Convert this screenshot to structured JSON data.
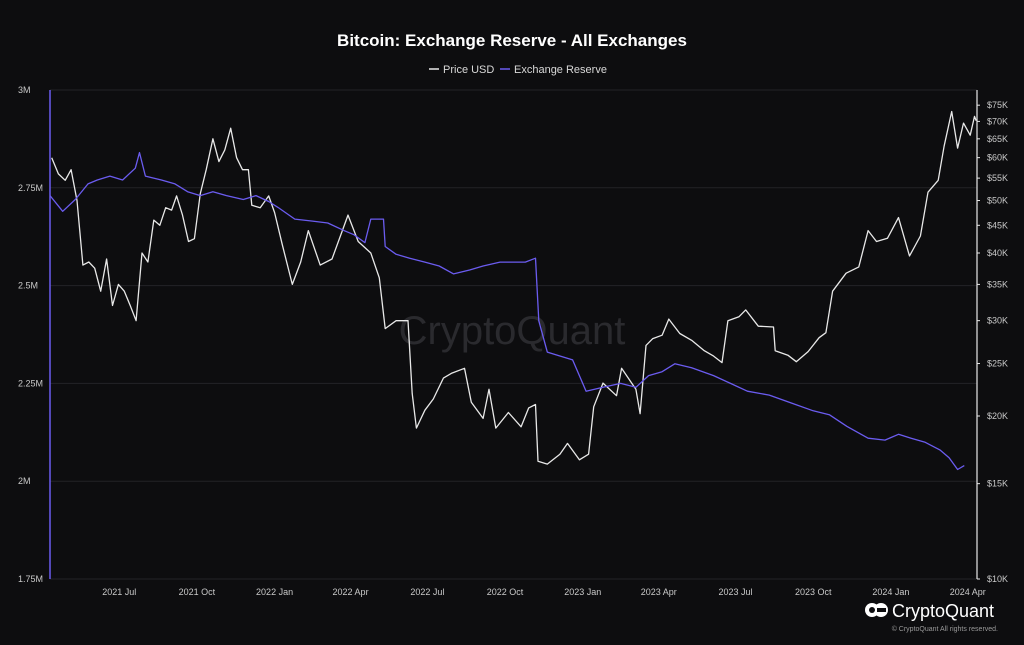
{
  "colors": {
    "background": "#0d0d0f",
    "price": "#e8e8e8",
    "reserve": "#6b5cf0",
    "grid": "#232327"
  },
  "watermark": "CryptoQuant",
  "brand": {
    "name": "CryptoQuant",
    "copyright": "© CryptoQuant All rights reserved.",
    "logo_icon": "cryptoquant-logo-icon"
  },
  "chart_data": {
    "type": "line",
    "title": "Bitcoin: Exchange Reserve - All Exchanges",
    "legend": [
      "Price USD",
      "Exchange Reserve"
    ],
    "legend_placement": "top-center",
    "grid": true,
    "x_range": [
      "2021-04-10",
      "2024-04-12"
    ],
    "x_ticks": [
      {
        "label": "2021 Jul",
        "date": "2021-07-01"
      },
      {
        "label": "2021 Oct",
        "date": "2021-10-01"
      },
      {
        "label": "2022 Jan",
        "date": "2022-01-01"
      },
      {
        "label": "2022 Apr",
        "date": "2022-04-01"
      },
      {
        "label": "2022 Jul",
        "date": "2022-07-01"
      },
      {
        "label": "2022 Oct",
        "date": "2022-10-01"
      },
      {
        "label": "2023 Jan",
        "date": "2023-01-01"
      },
      {
        "label": "2023 Apr",
        "date": "2023-04-01"
      },
      {
        "label": "2023 Jul",
        "date": "2023-07-01"
      },
      {
        "label": "2023 Oct",
        "date": "2023-10-01"
      },
      {
        "label": "2024 Jan",
        "date": "2024-01-01"
      },
      {
        "label": "2024 Apr",
        "date": "2024-04-01"
      }
    ],
    "y_left": {
      "range": [
        1750000,
        3000000
      ],
      "ticks": [
        {
          "label": "1.75M",
          "value": 1750000
        },
        {
          "label": "2M",
          "value": 2000000
        },
        {
          "label": "2.25M",
          "value": 2250000
        },
        {
          "label": "2.5M",
          "value": 2500000
        },
        {
          "label": "2.75M",
          "value": 2750000
        },
        {
          "label": "3M",
          "value": 3000000
        }
      ]
    },
    "y_right": {
      "scale": "log",
      "range": [
        10000,
        80000
      ],
      "ticks": [
        {
          "label": "$10K",
          "value": 10000
        },
        {
          "label": "$15K",
          "value": 15000
        },
        {
          "label": "$20K",
          "value": 20000
        },
        {
          "label": "$25K",
          "value": 25000
        },
        {
          "label": "$30K",
          "value": 30000
        },
        {
          "label": "$35K",
          "value": 35000
        },
        {
          "label": "$40K",
          "value": 40000
        },
        {
          "label": "$45K",
          "value": 45000
        },
        {
          "label": "$50K",
          "value": 50000
        },
        {
          "label": "$55K",
          "value": 55000
        },
        {
          "label": "$60K",
          "value": 60000
        },
        {
          "label": "$65K",
          "value": 65000
        },
        {
          "label": "$70K",
          "value": 70000
        },
        {
          "label": "$75K",
          "value": 75000
        }
      ]
    },
    "series": [
      {
        "name": "Price USD",
        "axis": "right",
        "points": [
          [
            "2021-04-12",
            60000
          ],
          [
            "2021-04-20",
            56000
          ],
          [
            "2021-04-28",
            54500
          ],
          [
            "2021-05-05",
            57000
          ],
          [
            "2021-05-12",
            50000
          ],
          [
            "2021-05-19",
            38000
          ],
          [
            "2021-05-26",
            38500
          ],
          [
            "2021-06-02",
            37500
          ],
          [
            "2021-06-09",
            34000
          ],
          [
            "2021-06-16",
            39000
          ],
          [
            "2021-06-23",
            32000
          ],
          [
            "2021-06-30",
            35000
          ],
          [
            "2021-07-07",
            34000
          ],
          [
            "2021-07-14",
            32000
          ],
          [
            "2021-07-21",
            30000
          ],
          [
            "2021-07-28",
            40000
          ],
          [
            "2021-08-04",
            38500
          ],
          [
            "2021-08-11",
            46000
          ],
          [
            "2021-08-18",
            45000
          ],
          [
            "2021-08-25",
            48500
          ],
          [
            "2021-09-01",
            48000
          ],
          [
            "2021-09-07",
            51000
          ],
          [
            "2021-09-14",
            47000
          ],
          [
            "2021-09-21",
            42000
          ],
          [
            "2021-09-28",
            42500
          ],
          [
            "2021-10-05",
            51500
          ],
          [
            "2021-10-12",
            57000
          ],
          [
            "2021-10-20",
            65000
          ],
          [
            "2021-10-27",
            59000
          ],
          [
            "2021-11-03",
            62000
          ],
          [
            "2021-11-10",
            68000
          ],
          [
            "2021-11-17",
            60000
          ],
          [
            "2021-11-24",
            57000
          ],
          [
            "2021-12-01",
            57000
          ],
          [
            "2021-12-05",
            49000
          ],
          [
            "2021-12-15",
            48500
          ],
          [
            "2021-12-25",
            51000
          ],
          [
            "2022-01-01",
            47500
          ],
          [
            "2022-01-10",
            41500
          ],
          [
            "2022-01-22",
            35000
          ],
          [
            "2022-02-01",
            38500
          ],
          [
            "2022-02-10",
            44000
          ],
          [
            "2022-02-24",
            38000
          ],
          [
            "2022-03-10",
            39000
          ],
          [
            "2022-03-29",
            47000
          ],
          [
            "2022-04-10",
            42000
          ],
          [
            "2022-04-25",
            40000
          ],
          [
            "2022-05-05",
            36000
          ],
          [
            "2022-05-12",
            29000
          ],
          [
            "2022-05-25",
            30000
          ],
          [
            "2022-06-08",
            30000
          ],
          [
            "2022-06-13",
            22000
          ],
          [
            "2022-06-18",
            19000
          ],
          [
            "2022-06-28",
            20500
          ],
          [
            "2022-07-08",
            21500
          ],
          [
            "2022-07-20",
            23500
          ],
          [
            "2022-07-30",
            24000
          ],
          [
            "2022-08-14",
            24500
          ],
          [
            "2022-08-22",
            21200
          ],
          [
            "2022-09-05",
            19800
          ],
          [
            "2022-09-12",
            22400
          ],
          [
            "2022-09-20",
            19000
          ],
          [
            "2022-10-05",
            20300
          ],
          [
            "2022-10-20",
            19100
          ],
          [
            "2022-10-29",
            20700
          ],
          [
            "2022-11-06",
            21000
          ],
          [
            "2022-11-09",
            16500
          ],
          [
            "2022-11-20",
            16300
          ],
          [
            "2022-12-05",
            17000
          ],
          [
            "2022-12-14",
            17800
          ],
          [
            "2022-12-28",
            16600
          ],
          [
            "2023-01-08",
            17000
          ],
          [
            "2023-01-14",
            20800
          ],
          [
            "2023-01-25",
            23000
          ],
          [
            "2023-02-10",
            21800
          ],
          [
            "2023-02-16",
            24500
          ],
          [
            "2023-03-05",
            22400
          ],
          [
            "2023-03-10",
            20200
          ],
          [
            "2023-03-17",
            27000
          ],
          [
            "2023-03-25",
            27800
          ],
          [
            "2023-04-05",
            28200
          ],
          [
            "2023-04-13",
            30200
          ],
          [
            "2023-04-26",
            28400
          ],
          [
            "2023-05-10",
            27600
          ],
          [
            "2023-05-25",
            26400
          ],
          [
            "2023-06-05",
            25800
          ],
          [
            "2023-06-15",
            25100
          ],
          [
            "2023-06-22",
            30000
          ],
          [
            "2023-07-05",
            30500
          ],
          [
            "2023-07-13",
            31400
          ],
          [
            "2023-07-28",
            29300
          ],
          [
            "2023-08-15",
            29200
          ],
          [
            "2023-08-17",
            26400
          ],
          [
            "2023-09-01",
            25900
          ],
          [
            "2023-09-11",
            25200
          ],
          [
            "2023-09-25",
            26300
          ],
          [
            "2023-10-08",
            27900
          ],
          [
            "2023-10-16",
            28500
          ],
          [
            "2023-10-24",
            34000
          ],
          [
            "2023-11-09",
            36700
          ],
          [
            "2023-11-24",
            37700
          ],
          [
            "2023-12-05",
            44000
          ],
          [
            "2023-12-15",
            42000
          ],
          [
            "2023-12-28",
            42600
          ],
          [
            "2024-01-10",
            46500
          ],
          [
            "2024-01-23",
            39500
          ],
          [
            "2024-02-05",
            43000
          ],
          [
            "2024-02-14",
            51800
          ],
          [
            "2024-02-26",
            54500
          ],
          [
            "2024-03-04",
            63000
          ],
          [
            "2024-03-13",
            73000
          ],
          [
            "2024-03-20",
            62500
          ],
          [
            "2024-03-27",
            69500
          ],
          [
            "2024-04-04",
            66000
          ],
          [
            "2024-04-09",
            71500
          ],
          [
            "2024-04-11",
            70200
          ]
        ]
      },
      {
        "name": "Exchange Reserve",
        "axis": "left",
        "points": [
          [
            "2021-04-10",
            2730000
          ],
          [
            "2021-04-25",
            2690000
          ],
          [
            "2021-05-10",
            2720000
          ],
          [
            "2021-05-25",
            2760000
          ],
          [
            "2021-06-05",
            2770000
          ],
          [
            "2021-06-20",
            2780000
          ],
          [
            "2021-07-05",
            2770000
          ],
          [
            "2021-07-20",
            2800000
          ],
          [
            "2021-07-25",
            2840000
          ],
          [
            "2021-08-01",
            2780000
          ],
          [
            "2021-08-20",
            2770000
          ],
          [
            "2021-09-05",
            2760000
          ],
          [
            "2021-09-20",
            2740000
          ],
          [
            "2021-10-05",
            2730000
          ],
          [
            "2021-10-20",
            2740000
          ],
          [
            "2021-11-05",
            2730000
          ],
          [
            "2021-11-25",
            2720000
          ],
          [
            "2021-12-10",
            2730000
          ],
          [
            "2021-12-25",
            2715000
          ],
          [
            "2022-01-05",
            2700000
          ],
          [
            "2022-01-25",
            2670000
          ],
          [
            "2022-02-15",
            2665000
          ],
          [
            "2022-03-05",
            2660000
          ],
          [
            "2022-03-25",
            2640000
          ],
          [
            "2022-04-05",
            2630000
          ],
          [
            "2022-04-18",
            2610000
          ],
          [
            "2022-04-25",
            2670000
          ],
          [
            "2022-05-10",
            2670000
          ],
          [
            "2022-05-12",
            2600000
          ],
          [
            "2022-05-25",
            2580000
          ],
          [
            "2022-06-10",
            2570000
          ],
          [
            "2022-06-28",
            2560000
          ],
          [
            "2022-07-15",
            2550000
          ],
          [
            "2022-08-01",
            2530000
          ],
          [
            "2022-08-20",
            2540000
          ],
          [
            "2022-09-05",
            2550000
          ],
          [
            "2022-09-25",
            2560000
          ],
          [
            "2022-10-10",
            2560000
          ],
          [
            "2022-10-25",
            2560000
          ],
          [
            "2022-11-06",
            2570000
          ],
          [
            "2022-11-10",
            2410000
          ],
          [
            "2022-11-20",
            2330000
          ],
          [
            "2022-12-05",
            2320000
          ],
          [
            "2022-12-20",
            2310000
          ],
          [
            "2023-01-05",
            2230000
          ],
          [
            "2023-01-25",
            2240000
          ],
          [
            "2023-02-15",
            2250000
          ],
          [
            "2023-03-05",
            2240000
          ],
          [
            "2023-03-20",
            2270000
          ],
          [
            "2023-04-05",
            2280000
          ],
          [
            "2023-04-20",
            2300000
          ],
          [
            "2023-05-10",
            2290000
          ],
          [
            "2023-06-05",
            2270000
          ],
          [
            "2023-06-25",
            2250000
          ],
          [
            "2023-07-15",
            2230000
          ],
          [
            "2023-08-10",
            2220000
          ],
          [
            "2023-09-05",
            2200000
          ],
          [
            "2023-10-01",
            2180000
          ],
          [
            "2023-10-20",
            2170000
          ],
          [
            "2023-11-10",
            2140000
          ],
          [
            "2023-12-05",
            2110000
          ],
          [
            "2023-12-25",
            2105000
          ],
          [
            "2024-01-10",
            2120000
          ],
          [
            "2024-01-25",
            2110000
          ],
          [
            "2024-02-10",
            2100000
          ],
          [
            "2024-02-28",
            2080000
          ],
          [
            "2024-03-10",
            2060000
          ],
          [
            "2024-03-20",
            2030000
          ],
          [
            "2024-03-28",
            2040000
          ]
        ]
      }
    ]
  }
}
